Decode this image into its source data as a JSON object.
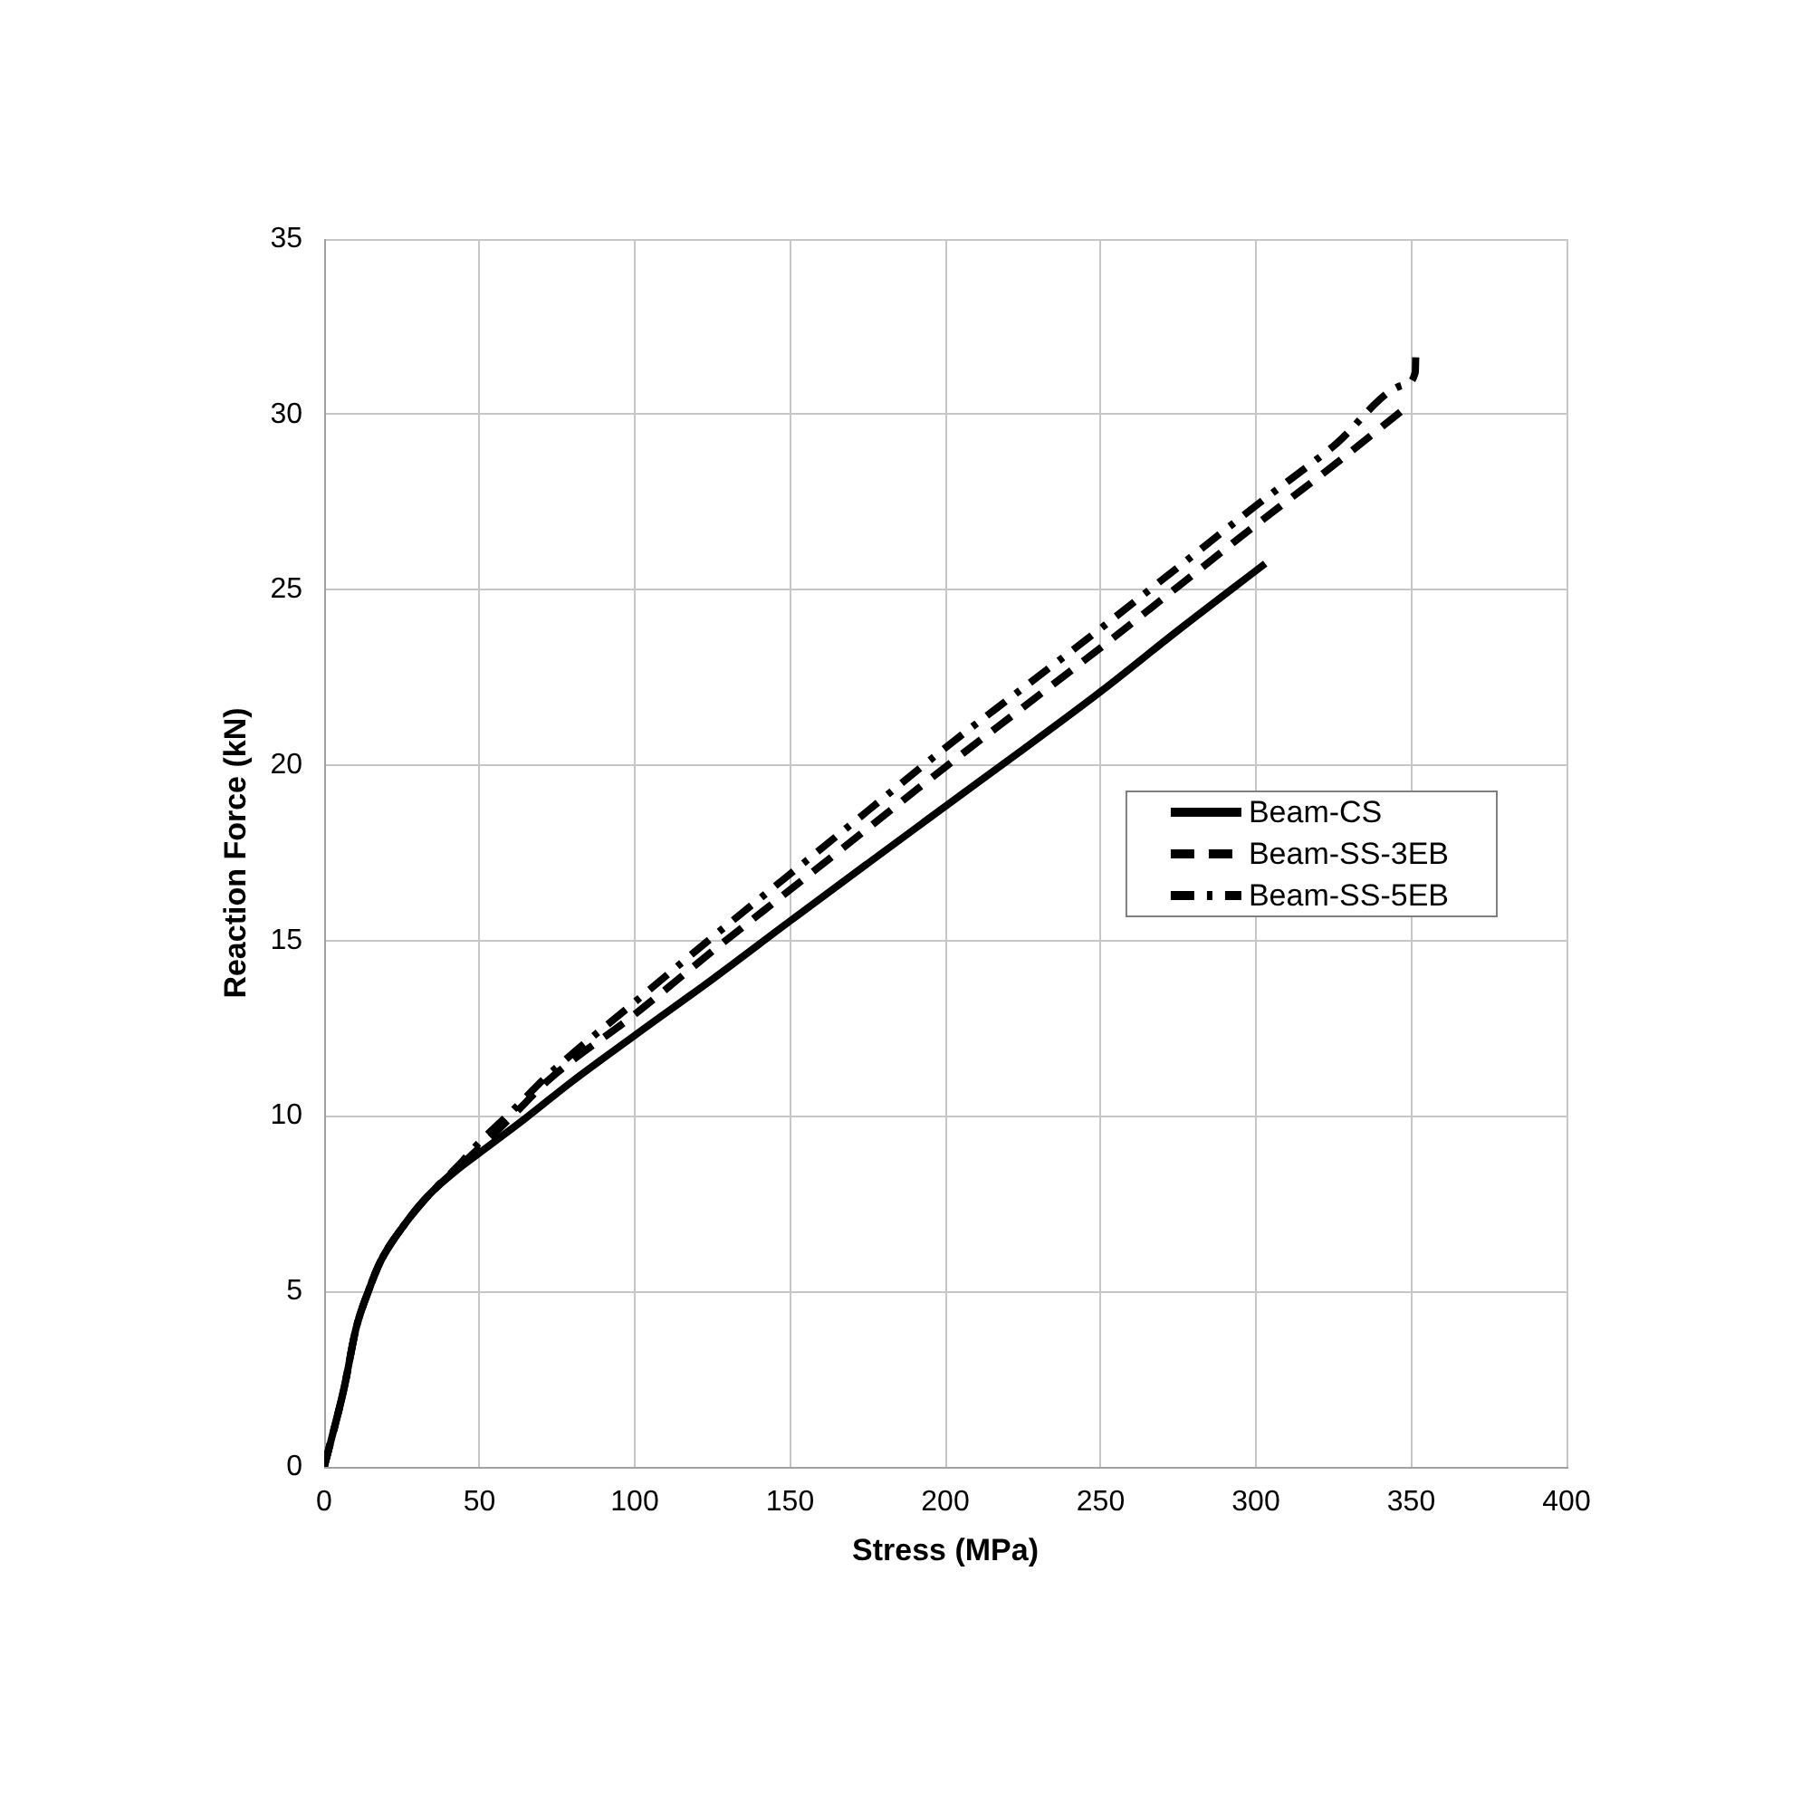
{
  "chart_data": {
    "type": "line",
    "xlabel": "Stress (MPa)",
    "ylabel": "Reaction Force (kN)",
    "xlim": [
      0,
      400
    ],
    "ylim": [
      0,
      35
    ],
    "xticks": [
      0,
      50,
      100,
      150,
      200,
      250,
      300,
      350,
      400
    ],
    "yticks": [
      0,
      5,
      10,
      15,
      20,
      25,
      30,
      35
    ],
    "grid": true,
    "legend": "right",
    "series": [
      {
        "name": "Beam-CS",
        "color": "#000000",
        "line_style": "solid",
        "x": [
          0,
          6.4,
          10.3,
          14.2,
          18.1,
          25.8,
          33.6,
          43.3,
          50,
          65,
          80,
          100,
          125,
          150,
          175,
          200,
          225,
          250,
          275,
          303
        ],
        "values": [
          0,
          2.24,
          3.96,
          5.0,
          5.85,
          6.9,
          7.74,
          8.5,
          8.95,
          9.95,
          11.0,
          12.3,
          13.9,
          15.56,
          17.2,
          18.83,
          20.45,
          22.1,
          23.85,
          25.75
        ]
      },
      {
        "name": "Beam-SS-3EB",
        "color": "#000000",
        "line_style": "dashed",
        "x": [
          0,
          6.4,
          10.3,
          14.2,
          18.1,
          25.8,
          33.6,
          43.3,
          50,
          60,
          72.5,
          100,
          125,
          150,
          175,
          200,
          225,
          250,
          275,
          300,
          325,
          349
        ],
        "values": [
          0,
          2.24,
          3.96,
          5.0,
          5.85,
          6.9,
          7.74,
          8.55,
          9.1,
          9.95,
          11.05,
          12.9,
          14.7,
          16.45,
          18.2,
          19.95,
          21.65,
          23.35,
          25.1,
          26.85,
          28.55,
          30.25
        ]
      },
      {
        "name": "Beam-SS-5EB",
        "color": "#000000",
        "line_style": "dashdot",
        "x": [
          0,
          6.4,
          10.3,
          14.2,
          18.1,
          25.8,
          33.6,
          43.3,
          50,
          60,
          72.5,
          100,
          125,
          150,
          175,
          200,
          225,
          250,
          275,
          300,
          325,
          348,
          351.3,
          351.5
        ],
        "values": [
          0,
          2.24,
          3.96,
          5.0,
          5.85,
          6.9,
          7.74,
          8.6,
          9.25,
          10.1,
          11.2,
          13.25,
          15.1,
          16.9,
          18.7,
          20.5,
          22.2,
          23.9,
          25.65,
          27.4,
          29.1,
          30.85,
          31.2,
          31.9
        ]
      }
    ]
  }
}
